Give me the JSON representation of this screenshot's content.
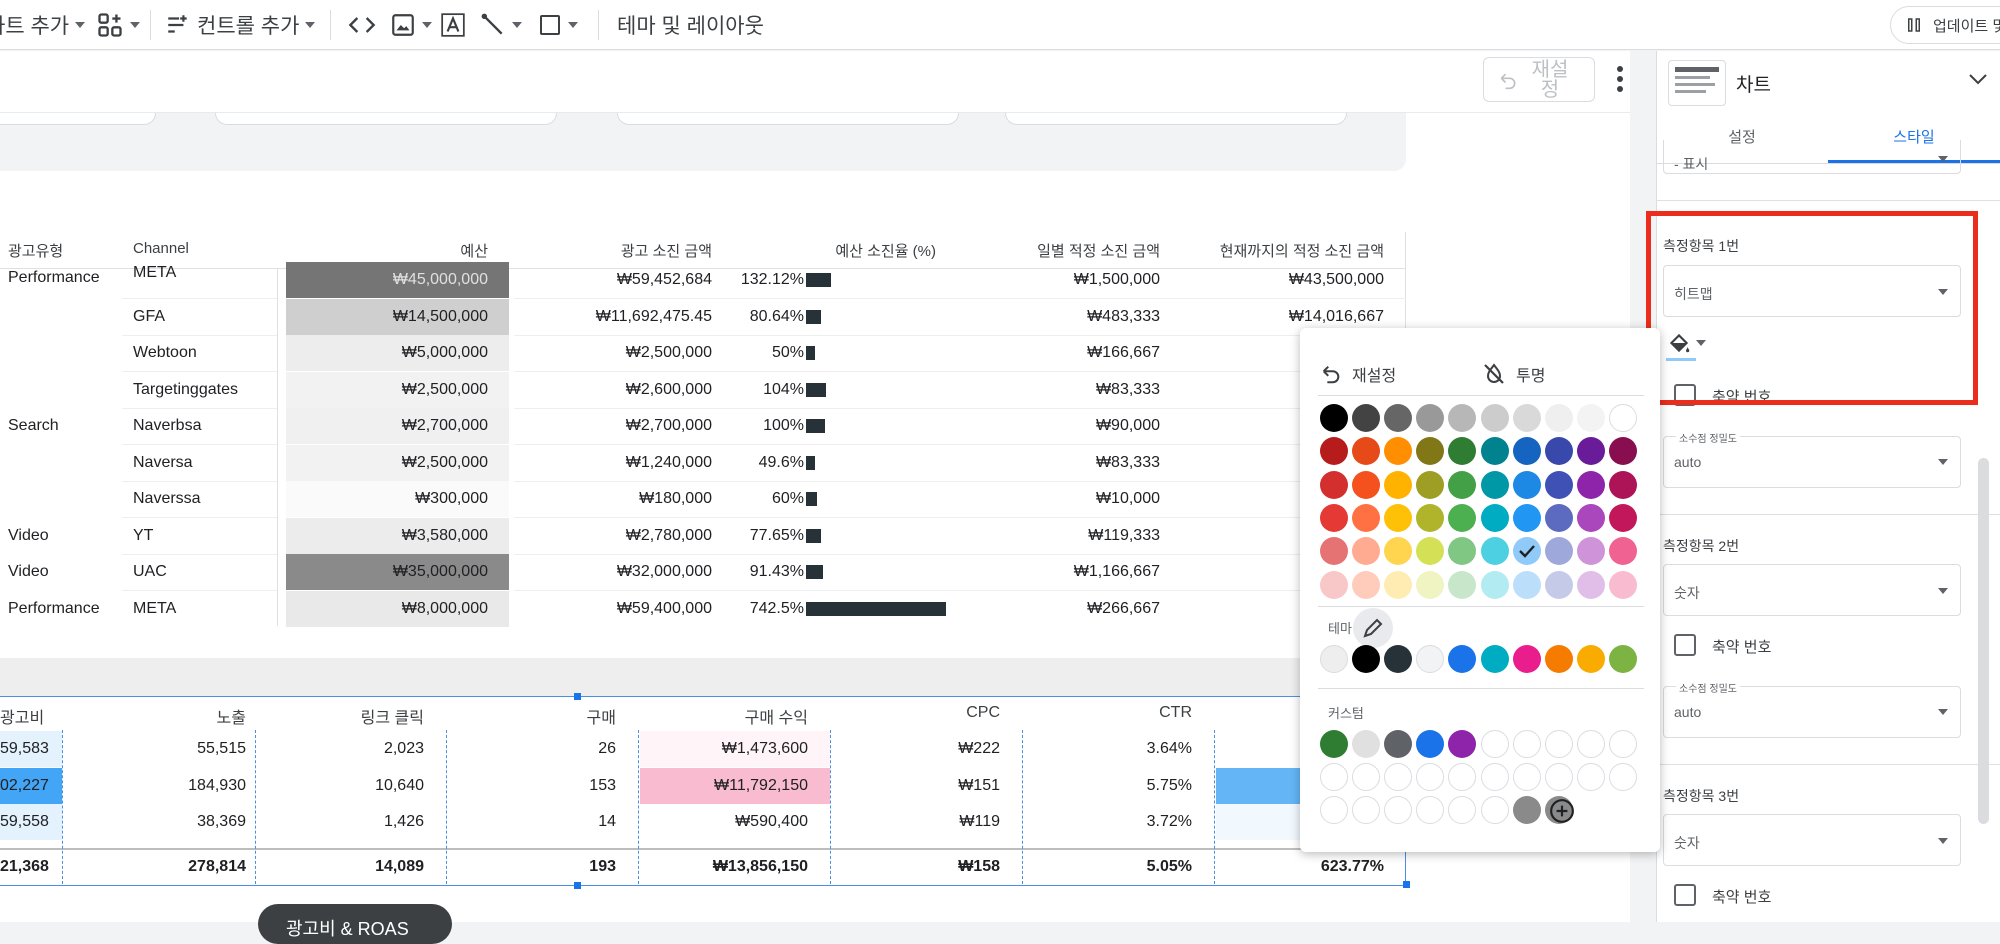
{
  "toolbar": {
    "add_chart": "차트 추가",
    "add_control": "컨트롤 추가",
    "theme_layout": "테마 및 레이아웃",
    "update": "업데이트 및"
  },
  "canvas_header": {
    "reset": "재설정"
  },
  "table1": {
    "headers": [
      "광고유형",
      "Channel",
      "예산",
      "광고 소진 금액",
      "예산 소진율 (%)",
      "일별 적정 소진 금액",
      "현재까지의 적정 소진 금액"
    ],
    "rows": [
      {
        "type": "Performance",
        "channel": "META",
        "budget": "₩45,000,000",
        "spend": "₩59,452,684",
        "rate": "132.12%",
        "rate_value": 132.12,
        "daily": "₩1,500,000",
        "todate": "₩43,500,000",
        "heat": "#757575",
        "heat_text": "#e0e0e0"
      },
      {
        "type": "",
        "channel": "GFA",
        "budget": "₩14,500,000",
        "spend": "₩11,692,475.45",
        "rate": "80.64%",
        "rate_value": 80.64,
        "daily": "₩483,333",
        "todate": "₩14,016,667",
        "heat": "#cfcfcf",
        "heat_text": "#202124"
      },
      {
        "type": "",
        "channel": "Webtoon",
        "budget": "₩5,000,000",
        "spend": "₩2,500,000",
        "rate": "50%",
        "rate_value": 50,
        "daily": "₩166,667",
        "todate": "",
        "heat": "#ededed",
        "heat_text": "#202124"
      },
      {
        "type": "",
        "channel": "Targetinggates",
        "budget": "₩2,500,000",
        "spend": "₩2,600,000",
        "rate": "104%",
        "rate_value": 104,
        "daily": "₩83,333",
        "todate": "",
        "heat": "#f2f2f2",
        "heat_text": "#202124"
      },
      {
        "type": "Search",
        "channel": "Naverbsa",
        "budget": "₩2,700,000",
        "spend": "₩2,700,000",
        "rate": "100%",
        "rate_value": 100,
        "daily": "₩90,000",
        "todate": "",
        "heat": "#f0f0f0",
        "heat_text": "#202124"
      },
      {
        "type": "",
        "channel": "Naversa",
        "budget": "₩2,500,000",
        "spend": "₩1,240,000",
        "rate": "49.6%",
        "rate_value": 49.6,
        "daily": "₩83,333",
        "todate": "",
        "heat": "#f2f2f2",
        "heat_text": "#202124"
      },
      {
        "type": "",
        "channel": "Naverssa",
        "budget": "₩300,000",
        "spend": "₩180,000",
        "rate": "60%",
        "rate_value": 60,
        "daily": "₩10,000",
        "todate": "",
        "heat": "#fafafa",
        "heat_text": "#202124"
      },
      {
        "type": "Video",
        "channel": "YT",
        "budget": "₩3,580,000",
        "spend": "₩2,780,000",
        "rate": "77.65%",
        "rate_value": 77.65,
        "daily": "₩119,333",
        "todate": "",
        "heat": "#ececec",
        "heat_text": "#202124"
      },
      {
        "type": "Video",
        "channel": "UAC",
        "budget": "₩35,000,000",
        "spend": "₩32,000,000",
        "rate": "91.43%",
        "rate_value": 91.43,
        "daily": "₩1,166,667",
        "todate": "",
        "heat": "#8a8a8a",
        "heat_text": "#202124"
      },
      {
        "type": "Performance",
        "channel": "META",
        "budget": "₩8,000,000",
        "spend": "₩59,400,000",
        "rate": "742.5%",
        "rate_value": 742.5,
        "daily": "₩266,667",
        "todate": "",
        "heat": "#e9e9e9",
        "heat_text": "#202124"
      }
    ]
  },
  "table2": {
    "headers": [
      "광고비",
      "노출",
      "링크 클릭",
      "구매",
      "구매 수익",
      "CPC",
      "CTR"
    ],
    "rows": [
      {
        "cost": "59,583",
        "impr": "55,515",
        "clicks": "2,023",
        "purch": "26",
        "rev": "₩1,473,600",
        "cpc": "₩222",
        "ctr": "3.64%",
        "cost_bg": "#e3f2fd",
        "rev_bg": "#fff4f8",
        "last_bg": "#ffffff"
      },
      {
        "cost": "02,227",
        "impr": "184,930",
        "clicks": "10,640",
        "purch": "153",
        "rev": "₩11,792,150",
        "cpc": "₩151",
        "ctr": "5.75%",
        "cost_bg": "#42a5f5",
        "rev_bg": "#f8bbd0",
        "last_bg": "#64b5f6"
      },
      {
        "cost": "59,558",
        "impr": "38,369",
        "clicks": "1,426",
        "purch": "14",
        "rev": "₩590,400",
        "cpc": "₩119",
        "ctr": "3.72%",
        "cost_bg": "#e3f2fd",
        "rev_bg": "#ffffff",
        "last_bg": "#f1f8fe"
      }
    ],
    "total": {
      "cost": "21,368",
      "impr": "278,814",
      "clicks": "14,089",
      "purch": "193",
      "rev": "₩13,856,150",
      "cpc": "₩158",
      "ctr": "5.05%",
      "roas": "623.77%"
    }
  },
  "bottom_tab": "광고비 & ROAS",
  "panel": {
    "title": "차트",
    "tab_setup": "설정",
    "tab_style": "스타일",
    "top_select": "- 표시",
    "metric1_label": "측정항목 1번",
    "metric1_select": "히트맵",
    "compact1": "축약 번호",
    "decimal_label": "소수점 정밀도",
    "decimal_value": "auto",
    "metric2_label": "측정항목 2번",
    "metric2_select": "숫자",
    "compact2": "축약 번호",
    "decimal2_label": "소수점 정밀도",
    "decimal2_value": "auto",
    "metric3_label": "측정항목 3번",
    "metric3_select": "숫자",
    "compact3": "축약 번호"
  },
  "popup": {
    "reset": "재설정",
    "transparent": "투명",
    "theme_label": "테마",
    "custom_label": "커스텀",
    "grid": [
      [
        "#000000",
        "#434343",
        "#666666",
        "#999999",
        "#b7b7b7",
        "#cccccc",
        "#d9d9d9",
        "#efefef",
        "#f3f3f3",
        "#ffffff"
      ],
      [
        "#b71c1c",
        "#e64a19",
        "#ff8f00",
        "#827717",
        "#2e7d32",
        "#00838f",
        "#1565c0",
        "#3949ab",
        "#6a1b9a",
        "#880e4f"
      ],
      [
        "#d32f2f",
        "#f4511e",
        "#ffb300",
        "#9e9d24",
        "#43a047",
        "#0097a7",
        "#1e88e5",
        "#3f51b5",
        "#8e24aa",
        "#ad1457"
      ],
      [
        "#e53935",
        "#ff7043",
        "#ffc107",
        "#afb42b",
        "#4caf50",
        "#00acc1",
        "#2196f3",
        "#5c6bc0",
        "#ab47bc",
        "#c2185b"
      ],
      [
        "#e57373",
        "#ffab91",
        "#ffd54f",
        "#d4e157",
        "#81c784",
        "#4dd0e1",
        "#90caf9",
        "#9fa8da",
        "#ce93d8",
        "#f06292"
      ],
      [
        "#f8c8c8",
        "#ffccbc",
        "#ffecb3",
        "#f0f4c3",
        "#c8e6c9",
        "#b2ebf2",
        "#bbdefb",
        "#c5cae9",
        "#e1bee7",
        "#f8bbd0"
      ]
    ],
    "selected": [
      4,
      6
    ],
    "theme": [
      "#eeeeee",
      "#000000",
      "#263238",
      "#f1f3f4",
      "#1a73e8",
      "#00acc1",
      "#e91e8c",
      "#f57c00",
      "#f9ab00",
      "#7cb342"
    ],
    "custom": [
      "#2e7d32",
      "#e0e0e0",
      "#5f6368",
      "#1a73e8",
      "#8e24aa",
      "",
      "",
      "",
      "",
      "",
      "",
      "",
      "",
      "",
      "",
      "",
      "",
      "",
      "",
      "",
      "",
      "",
      "",
      "",
      "",
      "",
      "#8a8a8a",
      "#8a8a8a"
    ]
  },
  "colors": {
    "accent": "#1a73e8",
    "highlight": "#ea2d1c"
  }
}
